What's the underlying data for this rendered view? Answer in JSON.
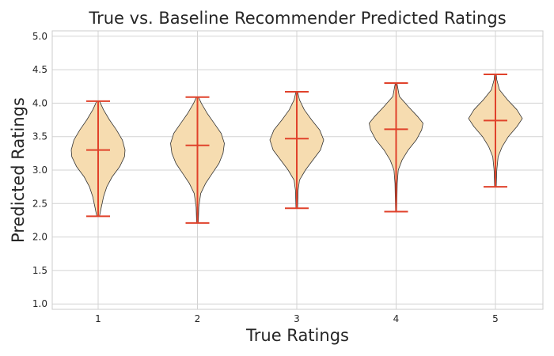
{
  "chart_data": {
    "type": "violin",
    "title": "True vs. Baseline Recommender Predicted Ratings",
    "xlabel": "True Ratings",
    "ylabel": "Predicted Ratings",
    "categories": [
      "1",
      "2",
      "3",
      "4",
      "5"
    ],
    "ylim": [
      0.92,
      5.08
    ],
    "yticks": [
      "1.0",
      "1.5",
      "2.0",
      "2.5",
      "3.0",
      "3.5",
      "4.0",
      "4.5",
      "5.0"
    ],
    "grid": true,
    "colors": {
      "violin_fill": "#f6dcb0",
      "violin_edge": "#333333",
      "stat_lines": "#e0422b",
      "grid": "#d3d3d3"
    },
    "violins": [
      {
        "category": "1",
        "min": 2.31,
        "max": 4.03,
        "mean": 3.3,
        "density": [
          [
            2.31,
            0.05
          ],
          [
            2.45,
            0.12
          ],
          [
            2.6,
            0.2
          ],
          [
            2.75,
            0.32
          ],
          [
            2.9,
            0.52
          ],
          [
            3.05,
            0.8
          ],
          [
            3.2,
            0.98
          ],
          [
            3.3,
            1.0
          ],
          [
            3.45,
            0.9
          ],
          [
            3.6,
            0.68
          ],
          [
            3.75,
            0.42
          ],
          [
            3.9,
            0.2
          ],
          [
            4.03,
            0.05
          ]
        ]
      },
      {
        "category": "2",
        "min": 2.21,
        "max": 4.09,
        "mean": 3.37,
        "density": [
          [
            2.21,
            0.03
          ],
          [
            2.45,
            0.05
          ],
          [
            2.65,
            0.12
          ],
          [
            2.8,
            0.3
          ],
          [
            2.95,
            0.55
          ],
          [
            3.1,
            0.8
          ],
          [
            3.25,
            0.95
          ],
          [
            3.4,
            1.0
          ],
          [
            3.55,
            0.88
          ],
          [
            3.7,
            0.62
          ],
          [
            3.85,
            0.36
          ],
          [
            4.0,
            0.14
          ],
          [
            4.09,
            0.04
          ]
        ]
      },
      {
        "category": "3",
        "min": 2.43,
        "max": 4.17,
        "mean": 3.47,
        "density": [
          [
            2.43,
            0.03
          ],
          [
            2.7,
            0.05
          ],
          [
            2.85,
            0.1
          ],
          [
            3.0,
            0.32
          ],
          [
            3.15,
            0.6
          ],
          [
            3.3,
            0.88
          ],
          [
            3.45,
            1.0
          ],
          [
            3.6,
            0.85
          ],
          [
            3.75,
            0.55
          ],
          [
            3.9,
            0.28
          ],
          [
            4.05,
            0.1
          ],
          [
            4.17,
            0.03
          ]
        ]
      },
      {
        "category": "4",
        "min": 2.38,
        "max": 4.3,
        "mean": 3.61,
        "density": [
          [
            2.38,
            0.02
          ],
          [
            2.8,
            0.04
          ],
          [
            3.0,
            0.08
          ],
          [
            3.15,
            0.22
          ],
          [
            3.3,
            0.45
          ],
          [
            3.45,
            0.75
          ],
          [
            3.6,
            0.95
          ],
          [
            3.7,
            1.0
          ],
          [
            3.8,
            0.8
          ],
          [
            3.95,
            0.45
          ],
          [
            4.1,
            0.12
          ],
          [
            4.3,
            0.03
          ]
        ]
      },
      {
        "category": "5",
        "min": 2.75,
        "max": 4.43,
        "mean": 3.74,
        "density": [
          [
            2.75,
            0.03
          ],
          [
            3.0,
            0.05
          ],
          [
            3.2,
            0.1
          ],
          [
            3.35,
            0.25
          ],
          [
            3.5,
            0.48
          ],
          [
            3.65,
            0.8
          ],
          [
            3.77,
            1.0
          ],
          [
            3.9,
            0.8
          ],
          [
            4.05,
            0.45
          ],
          [
            4.2,
            0.15
          ],
          [
            4.35,
            0.05
          ],
          [
            4.43,
            0.03
          ]
        ]
      }
    ]
  }
}
